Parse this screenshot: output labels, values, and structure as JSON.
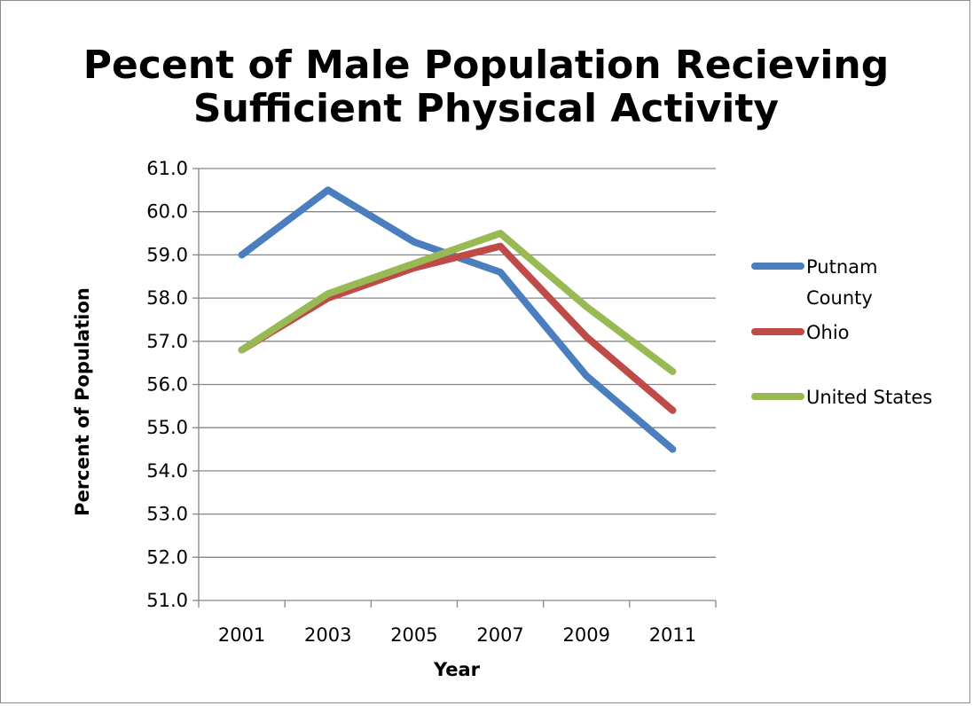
{
  "chart_data": {
    "type": "line",
    "title": [
      "Pecent of Male Population Recieving",
      "Sufficient Physical Activity"
    ],
    "xlabel": "Year",
    "ylabel": "Percent of Population",
    "categories": [
      "2001",
      "2003",
      "2005",
      "2007",
      "2009",
      "2011"
    ],
    "ylim": [
      51.0,
      61.0
    ],
    "yticks": [
      "51.0",
      "52.0",
      "53.0",
      "54.0",
      "55.0",
      "56.0",
      "57.0",
      "58.0",
      "59.0",
      "60.0",
      "61.0"
    ],
    "grid": true,
    "legend_position": "right",
    "series": [
      {
        "name": [
          "Putnam",
          "County"
        ],
        "color": "#4a7ebf",
        "values": [
          59.0,
          60.5,
          59.3,
          58.6,
          56.2,
          54.5
        ]
      },
      {
        "name": [
          "Ohio"
        ],
        "color": "#be4b48",
        "values": [
          56.8,
          58.0,
          58.7,
          59.2,
          57.1,
          55.4
        ]
      },
      {
        "name": [
          "United States"
        ],
        "color": "#98b954",
        "values": [
          56.8,
          58.1,
          58.8,
          59.5,
          57.8,
          56.3
        ]
      }
    ]
  }
}
